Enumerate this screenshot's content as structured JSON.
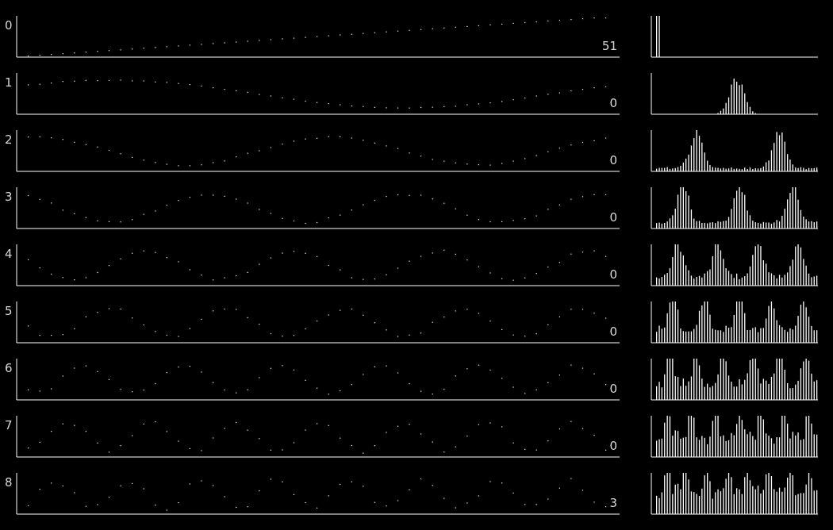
{
  "chart_data": {
    "type": "multi-panel dot plot with spectrum bars",
    "rows": [
      {
        "label": "0",
        "value": "51"
      },
      {
        "label": "1",
        "value": "0"
      },
      {
        "label": "2",
        "value": "0"
      },
      {
        "label": "3",
        "value": "0"
      },
      {
        "label": "4",
        "value": "0"
      },
      {
        "label": "5",
        "value": "0"
      },
      {
        "label": "6",
        "value": "0"
      },
      {
        "label": "7",
        "value": "0"
      },
      {
        "label": "8",
        "value": "3"
      }
    ],
    "points_per_row": 51,
    "bins_per_spectrum": 61,
    "colors": {
      "background": "#000000",
      "foreground": "#ffffff",
      "text": "#d8d8d8"
    }
  }
}
